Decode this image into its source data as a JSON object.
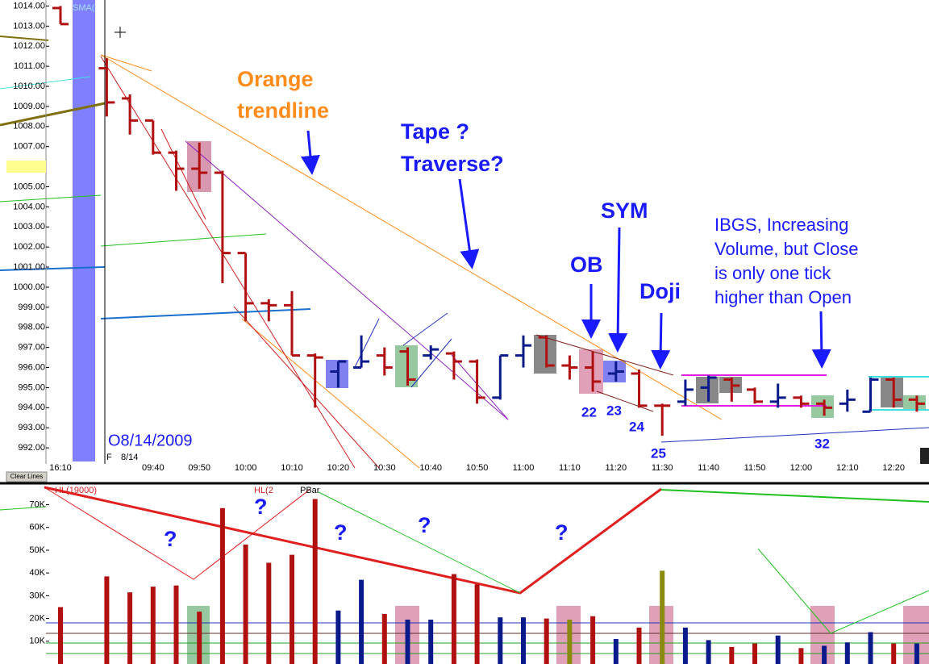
{
  "chart_data": [
    {
      "type": "ohlc",
      "categories": [
        "16:10",
        null,
        null,
        null,
        "09:40",
        null,
        "09:50",
        null,
        "10:00",
        null,
        "10:10",
        null,
        "10:20",
        null,
        "10:30",
        null,
        "10:40",
        null,
        "10:50",
        null,
        "11:00",
        null,
        "11:10",
        null,
        "11:20",
        null,
        "11:30",
        null,
        "11:40",
        null,
        "11:50",
        null,
        "12:00",
        null,
        "12:10",
        null,
        "12:20",
        null
      ],
      "open": [
        1013.9,
        null,
        1010.9,
        1009.4,
        1008.3,
        1006.7,
        1005.9,
        1005.7,
        1001.7,
        999.2,
        999.1,
        996.6,
        995.8,
        996.0,
        996.6,
        996.8,
        996.6,
        996.7,
        996.3,
        994.5,
        996.6,
        997.5,
        996.1,
        996.0,
        995.7,
        995.7,
        994.1,
        994.3,
        995.0,
        995.4,
        994.9,
        994.3,
        994.5,
        994.2,
        994.2,
        993.8,
        995.4,
        994.4
      ],
      "high": [
        1014.0,
        null,
        1011.4,
        1009.6,
        1008.3,
        1006.8,
        1007.2,
        1005.8,
        1001.7,
        999.4,
        999.8,
        996.7,
        996.3,
        997.6,
        997.0,
        997.0,
        997.1,
        996.8,
        996.4,
        996.6,
        997.6,
        997.6,
        996.6,
        996.8,
        996.3,
        995.9,
        994.2,
        995.4,
        995.6,
        995.5,
        995.0,
        995.2,
        994.6,
        994.4,
        994.9,
        995.5,
        995.5,
        994.6
      ],
      "low": [
        1013.1,
        null,
        1008.5,
        1007.6,
        1006.6,
        1004.8,
        1004.9,
        1000.2,
        998.3,
        998.3,
        996.6,
        994.0,
        995.0,
        996.0,
        995.6,
        995.1,
        996.4,
        995.4,
        994.2,
        994.4,
        996.0,
        996.0,
        995.4,
        994.8,
        995.3,
        994.0,
        992.6,
        994.1,
        994.3,
        994.3,
        994.2,
        994.0,
        994.0,
        993.6,
        993.8,
        993.8,
        994.0,
        993.8
      ],
      "close": [
        1013.1,
        null,
        1009.2,
        1008.3,
        1006.7,
        1005.9,
        1005.7,
        1001.7,
        999.2,
        999.1,
        996.6,
        996.5,
        996.3,
        996.3,
        996.0,
        995.4,
        996.9,
        996.3,
        994.5,
        996.6,
        997.1,
        996.1,
        996.0,
        995.3,
        995.8,
        994.1,
        994.1,
        994.9,
        995.5,
        995.1,
        994.3,
        994.5,
        994.2,
        994.0,
        994.4,
        995.4,
        994.4,
        994.2
      ],
      "up_color": "#0a1a8a",
      "down_color": "#b01010",
      "ylim": [
        991.2,
        1014.3
      ],
      "yticks": [
        {
          "value": 992,
          "label": "992.00"
        },
        {
          "value": 993,
          "label": "993.00"
        },
        {
          "value": 994,
          "label": "994.00"
        },
        {
          "value": 995,
          "label": "995.00"
        },
        {
          "value": 996,
          "label": "996.00"
        },
        {
          "value": 997,
          "label": "997.00"
        },
        {
          "value": 998,
          "label": "998.00"
        },
        {
          "value": 999,
          "label": "999.00"
        },
        {
          "value": 1000,
          "label": "1000.00"
        },
        {
          "value": 1001,
          "label": "1001.00"
        },
        {
          "value": 1002,
          "label": "1002.00"
        },
        {
          "value": 1003,
          "label": "1003.00"
        },
        {
          "value": 1004,
          "label": "1004.00"
        },
        {
          "value": 1005,
          "label": "1005.00"
        },
        {
          "value": 1007,
          "label": "1007.00"
        },
        {
          "value": 1008,
          "label": "1008.00"
        },
        {
          "value": 1009,
          "label": "1009.00"
        },
        {
          "value": 1010,
          "label": "1010.00"
        },
        {
          "value": 1011,
          "label": "1011.00"
        },
        {
          "value": 1012,
          "label": "1012.00"
        },
        {
          "value": 1013,
          "label": "1013.00"
        },
        {
          "value": 1014,
          "label": "1014.00"
        }
      ],
      "indicator_label": "SMA(",
      "date_label": "O8/14/2009",
      "session_marker": "F",
      "session_date": "8/14",
      "button": "Clear Lines",
      "annotations": [
        [
          "Orange",
          "trendline"
        ],
        [
          "Tape ?",
          "Traverse?"
        ],
        [
          "SYM"
        ],
        [
          "OB"
        ],
        [
          "Doji"
        ],
        [
          "IBGS, Increasing",
          "Volume,  but Close",
          "is only  one  tick",
          "higher than Open"
        ]
      ],
      "bar_labels": [
        22,
        23,
        24,
        25,
        32
      ]
    },
    {
      "type": "bar",
      "values": [
        25000,
        null,
        38500,
        31500,
        34000,
        34500,
        23000,
        68500,
        52500,
        44500,
        48000,
        72500,
        23500,
        37000,
        22000,
        19500,
        19500,
        39500,
        35000,
        20500,
        20500,
        20000,
        19500,
        21000,
        11000,
        16000,
        41000,
        16000,
        10500,
        7500,
        9000,
        12500,
        7000,
        8000,
        9500,
        14000,
        9000,
        9000
      ],
      "colors": [
        "#b01010",
        null,
        "#b01010",
        "#b01010",
        "#b01010",
        "#b01010",
        "#b01010",
        "#b01010",
        "#b01010",
        "#b01010",
        "#b01010",
        "#b01010",
        "#0a1a8a",
        "#0a1a8a",
        "#b01010",
        "#0a1a8a",
        "#0a1a8a",
        "#b01010",
        "#b01010",
        "#0a1a8a",
        "#0a1a8a",
        "#b01010",
        "#8a8a10",
        "#b01010",
        "#0a1a8a",
        "#b01010",
        "#8a8a10",
        "#0a1a8a",
        "#0a1a8a",
        "#b01010",
        "#b01010",
        "#0a1a8a",
        "#b01010",
        "#0a1a8a",
        "#0a1a8a",
        "#0a1a8a",
        "#b01010",
        "#0a1a8a"
      ],
      "ylim": [
        0,
        78000
      ],
      "yticks": [
        {
          "value": 10000,
          "label": "10K"
        },
        {
          "value": 20000,
          "label": "20K"
        },
        {
          "value": 30000,
          "label": "30K"
        },
        {
          "value": 40000,
          "label": "40K"
        },
        {
          "value": 50000,
          "label": "50K"
        },
        {
          "value": 60000,
          "label": "60K"
        },
        {
          "value": 70000,
          "label": "70K"
        }
      ],
      "indicator_labels": [
        "HL(19000)",
        "HL(2",
        "PBar"
      ],
      "annotations": [
        "?",
        "?",
        "?",
        "?",
        "?"
      ]
    }
  ]
}
